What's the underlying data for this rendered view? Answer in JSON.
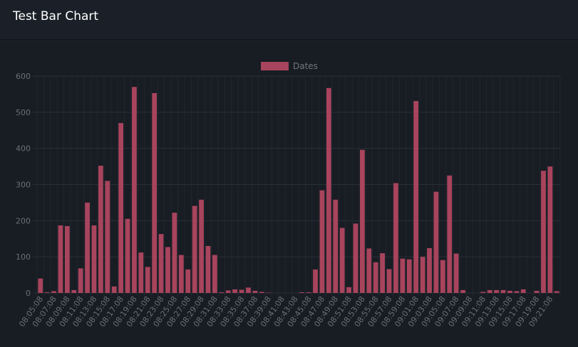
{
  "header": {
    "title": "Test Bar Chart"
  },
  "colors": {
    "bar": "#a8445d",
    "grid": "#2a2f38",
    "tick": "#6a6f78",
    "legend_text": "#72777f"
  },
  "chart_data": {
    "type": "bar",
    "title": "",
    "xlabel": "",
    "ylabel": "",
    "ylim": [
      0,
      600
    ],
    "yticks": [
      0,
      100,
      200,
      300,
      400,
      500,
      600
    ],
    "grid": true,
    "legend_position": "top-center",
    "categories": [
      "08:05:08",
      "08:06:08",
      "08:07:08",
      "08:08:08",
      "08:09:08",
      "08:10:08",
      "08:11:08",
      "08:12:08",
      "08:13:08",
      "08:14:08",
      "08:15:08",
      "08:16:08",
      "08:17:08",
      "08:18:08",
      "08:19:08",
      "08:20:08",
      "08:21:08",
      "08:22:08",
      "08:23:08",
      "08:24:08",
      "08:25:08",
      "08:26:08",
      "08:27:08",
      "08:28:08",
      "08:29:08",
      "08:30:08",
      "08:31:08",
      "08:32:08",
      "08:33:08",
      "08:34:08",
      "08:35:08",
      "08:36:08",
      "08:37:08",
      "08:38:08",
      "08:39:08",
      "08:40:08",
      "08:41:08",
      "08:42:08",
      "08:43:08",
      "08:44:08",
      "08:45:08",
      "08:46:08",
      "08:47:08",
      "08:48:08",
      "08:49:08",
      "08:50:08",
      "08:51:08",
      "08:52:08",
      "08:53:08",
      "08:54:08",
      "08:55:08",
      "08:56:08",
      "08:57:08",
      "08:58:08",
      "08:59:08",
      "09:00:08",
      "09:01:08",
      "09:02:08",
      "09:03:08",
      "09:04:08",
      "09:05:08",
      "09:06:08",
      "09:07:08",
      "09:08:08",
      "09:09:08",
      "09:10:08",
      "09:11:08",
      "09:12:08",
      "09:13:08",
      "09:14:08",
      "09:15:08",
      "09:16:08",
      "09:17:08",
      "09:18:08",
      "09:19:08",
      "09:20:08",
      "09:21:08",
      "09:22:08"
    ],
    "xtick_labels": [
      "08:05:08",
      "08:07:08",
      "08:09:08",
      "08:11:08",
      "08:13:08",
      "08:15:08",
      "08:17:08",
      "08:19:08",
      "08:21:08",
      "08:23:08",
      "08:25:08",
      "08:27:08",
      "08:29:08",
      "08:31:08",
      "08:33:08",
      "08:35:08",
      "08:37:08",
      "08:39:08",
      "08:41:08",
      "08:43:08",
      "08:45:08",
      "08:47:08",
      "08:49:08",
      "08:51:08",
      "08:53:08",
      "08:55:08",
      "08:57:08",
      "08:59:08",
      "09:01:08",
      "09:03:08",
      "09:05:08",
      "09:07:08",
      "09:09:08",
      "09:11:08",
      "09:13:08",
      "09:15:08",
      "09:17:08",
      "09:19:08",
      "09:21:08"
    ],
    "series": [
      {
        "name": "Dates",
        "values": [
          40,
          2,
          5,
          187,
          185,
          8,
          68,
          250,
          187,
          352,
          310,
          18,
          470,
          205,
          570,
          112,
          72,
          553,
          163,
          127,
          222,
          105,
          65,
          241,
          258,
          130,
          105,
          2,
          7,
          10,
          9,
          15,
          6,
          3,
          1,
          0,
          0,
          0,
          0,
          2,
          2,
          65,
          284,
          567,
          258,
          180,
          16,
          192,
          396,
          123,
          85,
          110,
          66,
          304,
          95,
          93,
          531,
          100,
          124,
          280,
          91,
          325,
          109,
          8,
          0,
          0,
          3,
          8,
          8,
          8,
          6,
          5,
          10,
          0,
          6,
          338,
          350,
          5
        ]
      }
    ]
  }
}
